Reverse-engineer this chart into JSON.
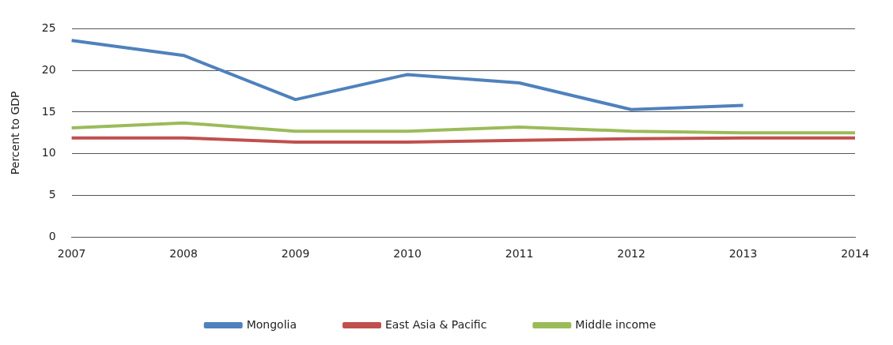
{
  "chart_data": {
    "type": "line",
    "ylabel": "Percent to GDP",
    "categories": [
      "2007",
      "2008",
      "2009",
      "2010",
      "2011",
      "2012",
      "2013",
      "2014"
    ],
    "series": [
      {
        "name": "Mongolia",
        "color": "#4f81bd",
        "values": [
          23.6,
          21.8,
          16.5,
          19.5,
          18.5,
          15.3,
          15.8,
          null
        ]
      },
      {
        "name": "East Asia & Pacific",
        "color": "#c0504d",
        "values": [
          11.9,
          11.9,
          11.4,
          11.4,
          11.6,
          11.8,
          11.9,
          11.9
        ]
      },
      {
        "name": "Middle income",
        "color": "#9bbb59",
        "values": [
          13.1,
          13.7,
          12.7,
          12.7,
          13.2,
          12.7,
          12.5,
          12.5
        ]
      }
    ],
    "ylim": [
      0,
      25
    ],
    "yticks": [
      0,
      5,
      10,
      15,
      20,
      25
    ],
    "grid": "y",
    "legend": "bottom",
    "marker": "none",
    "line_style": "solid"
  }
}
